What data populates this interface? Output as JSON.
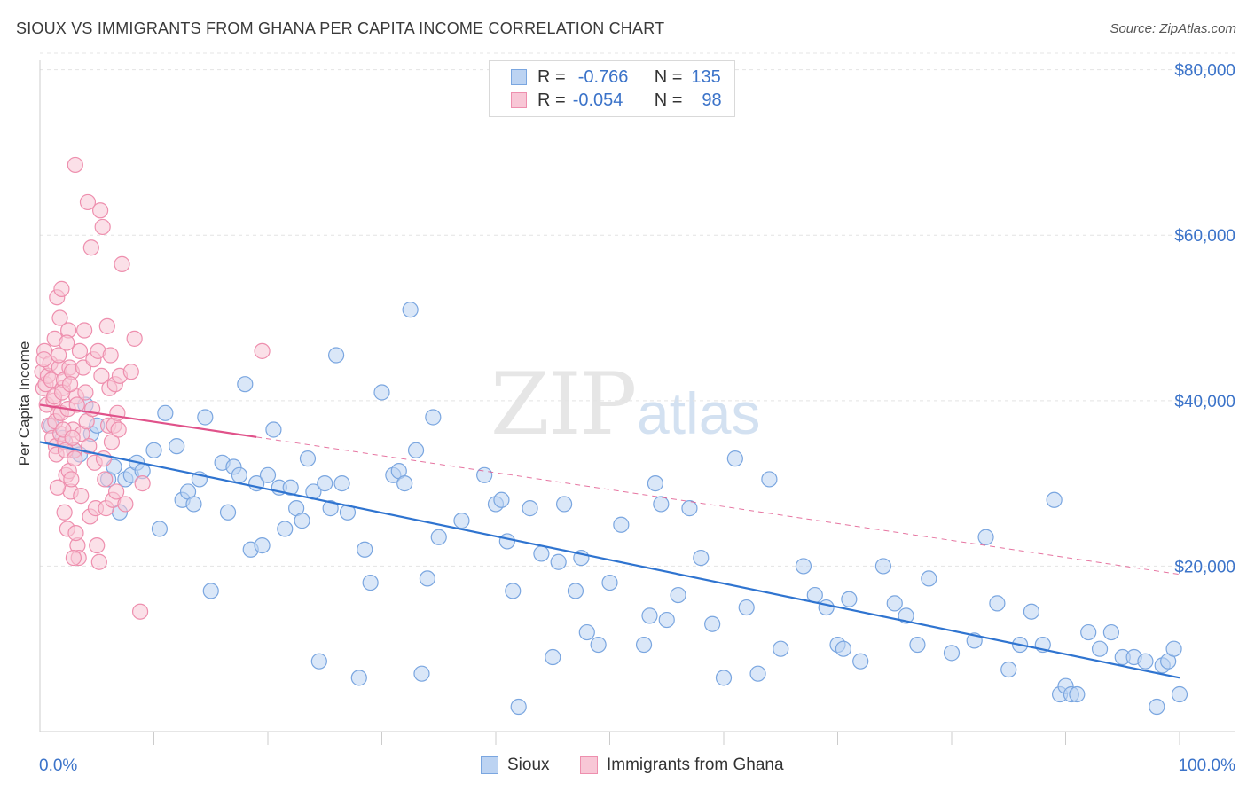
{
  "header": {
    "title": "SIOUX VS IMMIGRANTS FROM GHANA PER CAPITA INCOME CORRELATION CHART",
    "source": "Source: ZipAtlas.com"
  },
  "legend": {
    "r_label": "R =",
    "n_label": "N =",
    "series1": {
      "r": "-0.766",
      "n": "135"
    },
    "series2": {
      "r": "-0.054",
      "n": "98"
    }
  },
  "watermark": {
    "zip": "ZIP",
    "atlas": "atlas"
  },
  "colors": {
    "blue_fill": "#bcd3f2",
    "blue_stroke": "#7aa6e0",
    "blue_line": "#2f74d0",
    "pink_fill": "#f8c7d6",
    "pink_stroke": "#ee8fae",
    "pink_line": "#e0528a",
    "axis_text": "#3b73c9"
  },
  "chart_data": {
    "type": "scatter",
    "title": "SIOUX VS IMMIGRANTS FROM GHANA PER CAPITA INCOME CORRELATION CHART",
    "xlabel": "",
    "ylabel": "Per Capita Income",
    "xlim": [
      0,
      100
    ],
    "ylim": [
      0,
      82000
    ],
    "x_tick_labels": [
      "0.0%",
      "100.0%"
    ],
    "y_ticks": [
      20000,
      40000,
      60000,
      80000
    ],
    "y_tick_labels": [
      "$20,000",
      "$40,000",
      "$60,000",
      "$80,000"
    ],
    "legend_position": "bottom-center",
    "series": [
      {
        "name": "Sioux",
        "r": -0.766,
        "n": 135,
        "trend": {
          "x": [
            0,
            100
          ],
          "y": [
            35000,
            6500
          ],
          "style": "solid"
        },
        "points": [
          [
            1,
            37000
          ],
          [
            2,
            35500
          ],
          [
            3,
            34000
          ],
          [
            3.5,
            33500
          ],
          [
            4,
            39500
          ],
          [
            4.5,
            36000
          ],
          [
            5,
            37000
          ],
          [
            6,
            30500
          ],
          [
            6.5,
            32000
          ],
          [
            7,
            26500
          ],
          [
            7.5,
            30500
          ],
          [
            8,
            31000
          ],
          [
            8.5,
            32500
          ],
          [
            9,
            31500
          ],
          [
            10,
            34000
          ],
          [
            10.5,
            24500
          ],
          [
            11,
            38500
          ],
          [
            12,
            34500
          ],
          [
            12.5,
            28000
          ],
          [
            13,
            29000
          ],
          [
            13.5,
            27500
          ],
          [
            14,
            30500
          ],
          [
            14.5,
            38000
          ],
          [
            15,
            17000
          ],
          [
            16,
            32500
          ],
          [
            16.5,
            26500
          ],
          [
            17,
            32000
          ],
          [
            17.5,
            31000
          ],
          [
            18,
            42000
          ],
          [
            18.5,
            22000
          ],
          [
            19,
            30000
          ],
          [
            19.5,
            22500
          ],
          [
            20,
            31000
          ],
          [
            20.5,
            36500
          ],
          [
            21,
            29500
          ],
          [
            21.5,
            24500
          ],
          [
            22,
            29500
          ],
          [
            22.5,
            27000
          ],
          [
            23,
            25500
          ],
          [
            23.5,
            33000
          ],
          [
            24,
            29000
          ],
          [
            24.5,
            8500
          ],
          [
            25,
            30000
          ],
          [
            25.5,
            27000
          ],
          [
            26,
            45500
          ],
          [
            26.5,
            30000
          ],
          [
            27,
            26500
          ],
          [
            28,
            6500
          ],
          [
            28.5,
            22000
          ],
          [
            29,
            18000
          ],
          [
            30,
            41000
          ],
          [
            31,
            31000
          ],
          [
            31.5,
            31500
          ],
          [
            32,
            30000
          ],
          [
            32.5,
            51000
          ],
          [
            33,
            34000
          ],
          [
            33.5,
            7000
          ],
          [
            34,
            18500
          ],
          [
            34.5,
            38000
          ],
          [
            35,
            23500
          ],
          [
            37,
            25500
          ],
          [
            39,
            31000
          ],
          [
            40,
            27500
          ],
          [
            40.5,
            28000
          ],
          [
            41,
            23000
          ],
          [
            41.5,
            17000
          ],
          [
            42,
            3000
          ],
          [
            43,
            27000
          ],
          [
            44,
            21500
          ],
          [
            45,
            9000
          ],
          [
            45.5,
            20500
          ],
          [
            46,
            27500
          ],
          [
            47,
            17000
          ],
          [
            47.5,
            21000
          ],
          [
            48,
            12000
          ],
          [
            49,
            10500
          ],
          [
            50,
            18000
          ],
          [
            51,
            25000
          ],
          [
            53,
            10500
          ],
          [
            53.5,
            14000
          ],
          [
            54,
            30000
          ],
          [
            54.5,
            27500
          ],
          [
            55,
            13500
          ],
          [
            56,
            16500
          ],
          [
            57,
            27000
          ],
          [
            58,
            21000
          ],
          [
            59,
            13000
          ],
          [
            60,
            6500
          ],
          [
            61,
            33000
          ],
          [
            62,
            15000
          ],
          [
            63,
            7000
          ],
          [
            64,
            30500
          ],
          [
            65,
            10000
          ],
          [
            67,
            20000
          ],
          [
            68,
            16500
          ],
          [
            69,
            15000
          ],
          [
            70,
            10500
          ],
          [
            70.5,
            10000
          ],
          [
            71,
            16000
          ],
          [
            72,
            8500
          ],
          [
            74,
            20000
          ],
          [
            75,
            15500
          ],
          [
            76,
            14000
          ],
          [
            77,
            10500
          ],
          [
            78,
            18500
          ],
          [
            80,
            9500
          ],
          [
            82,
            11000
          ],
          [
            83,
            23500
          ],
          [
            84,
            15500
          ],
          [
            85,
            7500
          ],
          [
            86,
            10500
          ],
          [
            87,
            14500
          ],
          [
            88,
            10500
          ],
          [
            89,
            28000
          ],
          [
            89.5,
            4500
          ],
          [
            90,
            5500
          ],
          [
            90.5,
            4500
          ],
          [
            91,
            4500
          ],
          [
            92,
            12000
          ],
          [
            93,
            10000
          ],
          [
            94,
            12000
          ],
          [
            95,
            9000
          ],
          [
            96,
            9000
          ],
          [
            97,
            8500
          ],
          [
            98,
            3000
          ],
          [
            98.5,
            8000
          ],
          [
            99,
            8500
          ],
          [
            99.5,
            10000
          ],
          [
            100,
            4500
          ]
        ]
      },
      {
        "name": "Immigrants from Ghana",
        "r": -0.054,
        "n": 98,
        "trend": {
          "x": [
            0,
            100
          ],
          "y": [
            39500,
            19000
          ],
          "style": "solid-then-dashed",
          "solid_until_x": 19
        },
        "points": [
          [
            0.2,
            43500
          ],
          [
            0.3,
            41500
          ],
          [
            0.4,
            46000
          ],
          [
            0.5,
            42000
          ],
          [
            0.6,
            39500
          ],
          [
            0.7,
            43000
          ],
          [
            0.8,
            37000
          ],
          [
            0.9,
            44500
          ],
          [
            1,
            42500
          ],
          [
            1.1,
            35500
          ],
          [
            1.2,
            40000
          ],
          [
            1.3,
            47500
          ],
          [
            1.4,
            34500
          ],
          [
            1.5,
            52500
          ],
          [
            1.6,
            38500
          ],
          [
            1.7,
            44000
          ],
          [
            1.8,
            36000
          ],
          [
            1.9,
            53500
          ],
          [
            2,
            41500
          ],
          [
            2.1,
            42500
          ],
          [
            2.2,
            35000
          ],
          [
            2.3,
            31000
          ],
          [
            2.4,
            24500
          ],
          [
            2.5,
            48500
          ],
          [
            2.6,
            44000
          ],
          [
            2.7,
            29000
          ],
          [
            2.8,
            43500
          ],
          [
            2.9,
            36500
          ],
          [
            3,
            34000
          ],
          [
            3.1,
            68500
          ],
          [
            3.2,
            40500
          ],
          [
            3.3,
            22500
          ],
          [
            3.4,
            21000
          ],
          [
            3.5,
            46000
          ],
          [
            3.6,
            28500
          ],
          [
            3.7,
            36000
          ],
          [
            3.8,
            44000
          ],
          [
            3.9,
            48500
          ],
          [
            4,
            41000
          ],
          [
            4.1,
            37500
          ],
          [
            4.2,
            64000
          ],
          [
            4.3,
            34500
          ],
          [
            4.4,
            26000
          ],
          [
            4.5,
            58500
          ],
          [
            4.6,
            39000
          ],
          [
            4.7,
            45000
          ],
          [
            4.8,
            32500
          ],
          [
            4.9,
            27000
          ],
          [
            5,
            22500
          ],
          [
            5.1,
            46000
          ],
          [
            5.2,
            20500
          ],
          [
            5.3,
            63000
          ],
          [
            5.4,
            43000
          ],
          [
            5.5,
            61000
          ],
          [
            5.6,
            33000
          ],
          [
            5.7,
            30500
          ],
          [
            5.8,
            27000
          ],
          [
            5.9,
            49000
          ],
          [
            6,
            37000
          ],
          [
            6.1,
            41500
          ],
          [
            6.2,
            45500
          ],
          [
            6.3,
            35000
          ],
          [
            6.4,
            28000
          ],
          [
            6.5,
            37000
          ],
          [
            6.6,
            42000
          ],
          [
            6.7,
            29000
          ],
          [
            6.8,
            38500
          ],
          [
            6.9,
            36500
          ],
          [
            7,
            43000
          ],
          [
            7.2,
            56500
          ],
          [
            7.5,
            27500
          ],
          [
            8,
            43500
          ],
          [
            8.3,
            47500
          ],
          [
            8.8,
            14500
          ],
          [
            9,
            30000
          ],
          [
            1.25,
            40500
          ],
          [
            1.35,
            37500
          ],
          [
            1.45,
            33500
          ],
          [
            1.55,
            29500
          ],
          [
            1.65,
            45500
          ],
          [
            1.75,
            50000
          ],
          [
            1.85,
            38500
          ],
          [
            1.95,
            41000
          ],
          [
            2.05,
            36500
          ],
          [
            2.15,
            26500
          ],
          [
            2.25,
            34000
          ],
          [
            2.35,
            47000
          ],
          [
            2.45,
            39000
          ],
          [
            2.55,
            31500
          ],
          [
            2.65,
            42000
          ],
          [
            2.75,
            30500
          ],
          [
            2.85,
            35500
          ],
          [
            2.95,
            21000
          ],
          [
            3.05,
            33000
          ],
          [
            3.15,
            24000
          ],
          [
            3.25,
            39500
          ],
          [
            19.5,
            46000
          ],
          [
            0.35,
            45000
          ]
        ]
      }
    ]
  },
  "bottom_legend": {
    "series1": "Sioux",
    "series2": "Immigrants from Ghana"
  }
}
